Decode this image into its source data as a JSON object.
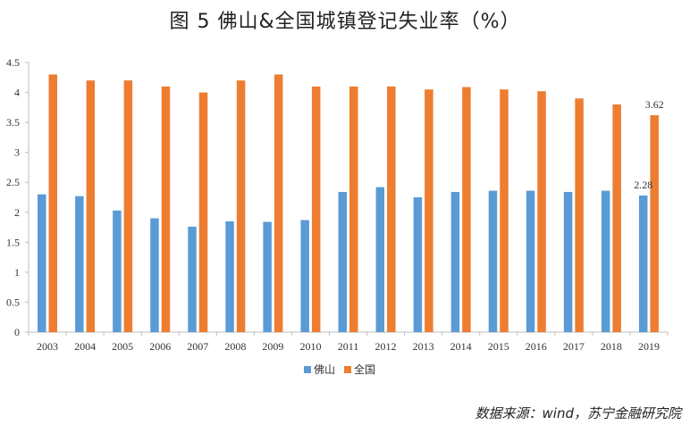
{
  "chart_data": {
    "type": "bar",
    "title": "图 5   佛山&全国城镇登记失业率（%）",
    "categories": [
      "2003",
      "2004",
      "2005",
      "2006",
      "2007",
      "2008",
      "2009",
      "2010",
      "2011",
      "2012",
      "2013",
      "2014",
      "2015",
      "2016",
      "2017",
      "2018",
      "2019"
    ],
    "series": [
      {
        "name": "佛山",
        "color": "#5B9BD5",
        "values": [
          2.3,
          2.27,
          2.03,
          1.9,
          1.76,
          1.85,
          1.84,
          1.87,
          2.34,
          2.42,
          2.25,
          2.34,
          2.36,
          2.36,
          2.34,
          2.36,
          2.28
        ]
      },
      {
        "name": "全国",
        "color": "#ED7D31",
        "values": [
          4.3,
          4.2,
          4.2,
          4.1,
          4.0,
          4.2,
          4.3,
          4.1,
          4.1,
          4.1,
          4.05,
          4.09,
          4.05,
          4.02,
          3.9,
          3.8,
          3.62
        ]
      }
    ],
    "data_labels": [
      {
        "series": 0,
        "index": 16,
        "text": "2.28"
      },
      {
        "series": 1,
        "index": 16,
        "text": "3.62"
      }
    ],
    "ylim": [
      0,
      4.5
    ],
    "yticks": [
      0,
      0.5,
      1,
      1.5,
      2,
      2.5,
      3,
      3.5,
      4,
      4.5
    ],
    "ytick_labels": [
      "0",
      "0.5",
      "1",
      "1.5",
      "2",
      "2.5",
      "3",
      "3.5",
      "4",
      "4.5"
    ],
    "xlabel": "",
    "ylabel": "",
    "grid": false,
    "legend_position": "bottom-center"
  },
  "source": "数据来源：wind，苏宁金融研究院"
}
